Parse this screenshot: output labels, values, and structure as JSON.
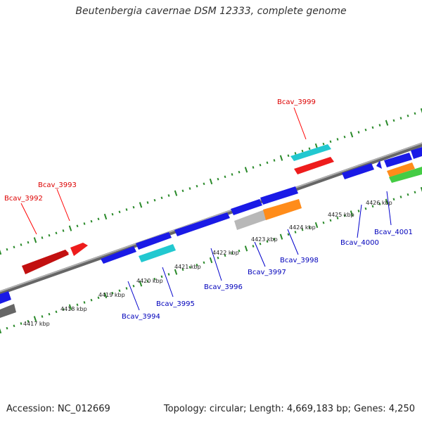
{
  "title": "Beutenbergia cavernae DSM 12333, complete genome",
  "footer": {
    "accession": "Accession: NC_012669",
    "stats": "Topology: circular; Length: 4,669,183 bp; Genes: 4,250"
  },
  "colors": {
    "forward_gene": "#ff0000",
    "reverse_gene": "#0000ff",
    "backbone": "#888888",
    "tick": "#2a8a2a",
    "gene_red": "#ee1c1c",
    "gene_blue": "#1a1ae6",
    "gene_cyan": "#22c8d0",
    "gene_orange": "#ff8c1a",
    "gene_green": "#44cc44",
    "gene_grey": "#b8b8b8",
    "gene_dark": "#666666"
  },
  "kbp_ticks": [
    "4417 kbp",
    "4418 kbp",
    "4419 kbp",
    "4420 kbp",
    "4421 kbp",
    "4422 kbp",
    "4423 kbp",
    "4424 kbp",
    "4425 kbp",
    "4426 kbp"
  ],
  "forward_labels": [
    "Bcav_3992",
    "Bcav_3993",
    "Bcav_3999"
  ],
  "reverse_labels": [
    "Bcav_3994",
    "Bcav_3995",
    "Bcav_3996",
    "Bcav_3997",
    "Bcav_3998",
    "Bcav_4000",
    "Bcav_4001"
  ]
}
